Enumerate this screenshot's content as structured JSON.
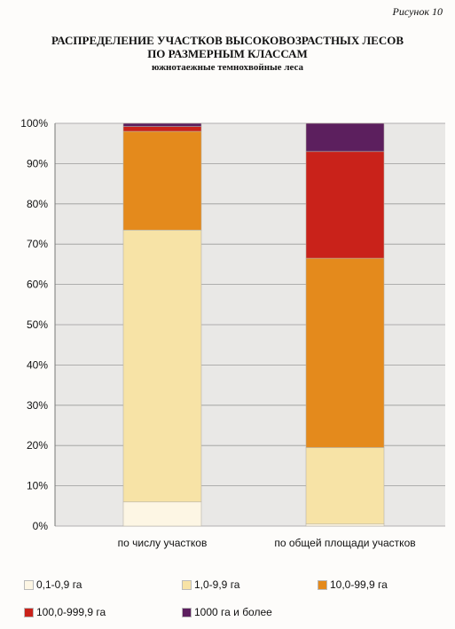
{
  "figure_label": "Рисунок 10",
  "chart_data": {
    "type": "bar",
    "stacked": true,
    "title_lines": [
      "РАСПРЕДЕЛЕНИЕ УЧАСТКОВ ВЫСОКОВОЗРАСТНЫХ ЛЕСОВ",
      "ПО РАЗМЕРНЫМ КЛАССАМ"
    ],
    "subtitle": "южнотаежные темнохвойные леса",
    "categories": [
      "по числу участков",
      "по общей площади участков"
    ],
    "ylim": [
      0,
      100
    ],
    "yticks": [
      "0%",
      "10%",
      "20%",
      "30%",
      "40%",
      "50%",
      "60%",
      "70%",
      "80%",
      "90%",
      "100%"
    ],
    "grid": true,
    "legend_position": "bottom",
    "series": [
      {
        "name": "0,1-0,9 га",
        "color": "#fdf6e4",
        "values": [
          6,
          0.5
        ]
      },
      {
        "name": "1,0-9,9 га",
        "color": "#f7e3a6",
        "values": [
          67.5,
          19
        ]
      },
      {
        "name": "10,0-99,9 га",
        "color": "#e48a1c",
        "values": [
          24.5,
          47
        ]
      },
      {
        "name": "100,0-999,9 га",
        "color": "#c9221a",
        "values": [
          1.2,
          26.5
        ]
      },
      {
        "name": "1000 га и более",
        "color": "#5c1f5e",
        "values": [
          0.8,
          7
        ]
      }
    ]
  }
}
